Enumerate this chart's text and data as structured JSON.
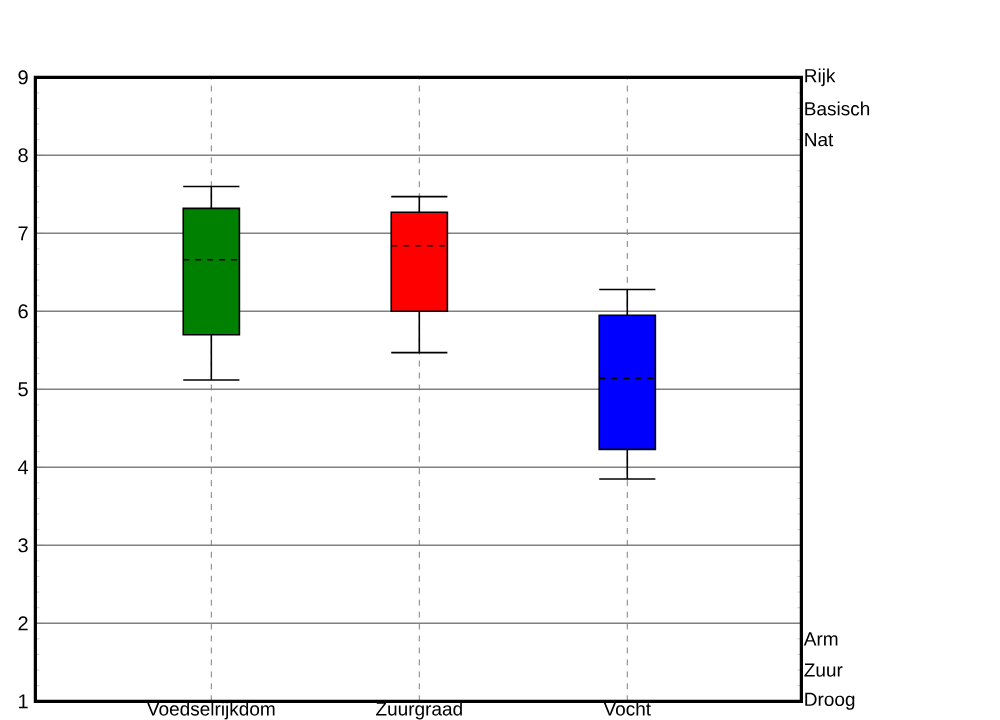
{
  "chart_data": {
    "type": "box",
    "categories": [
      "Voedselrijkdom",
      "Zuurgraad",
      "Vocht"
    ],
    "boxes": [
      {
        "low": 5.12,
        "q1": 5.7,
        "median": 6.66,
        "q3": 7.32,
        "high": 7.6
      },
      {
        "low": 5.47,
        "q1": 6.0,
        "median": 6.84,
        "q3": 7.27,
        "high": 7.47
      },
      {
        "low": 3.85,
        "q1": 4.23,
        "median": 5.14,
        "q3": 5.95,
        "high": 6.28
      }
    ],
    "colors": [
      "#008000",
      "#ff0000",
      "#0000ff"
    ],
    "ylim": [
      1,
      9
    ],
    "yticks": [
      1,
      2,
      3,
      4,
      5,
      6,
      7,
      8,
      9
    ],
    "grid": true,
    "annotations": [
      "Rijk",
      "Basisch",
      "Nat",
      "Arm",
      "Zuur",
      "Droog"
    ]
  }
}
